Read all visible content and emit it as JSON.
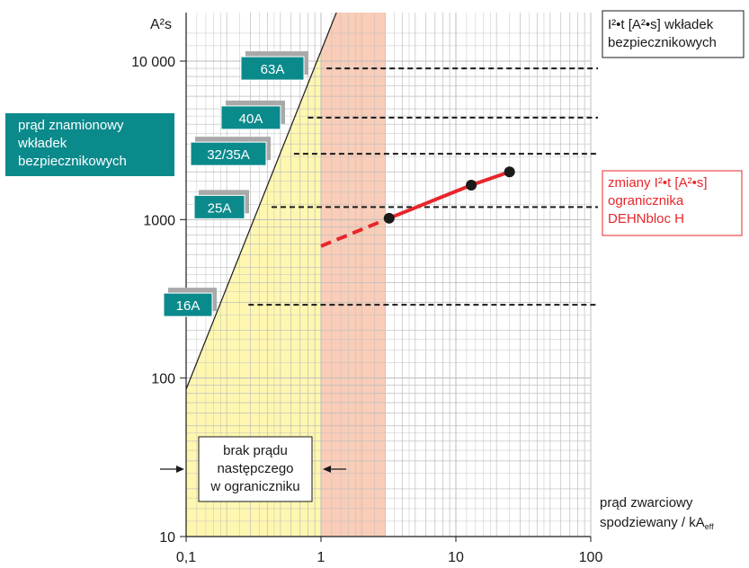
{
  "chart_data": {
    "type": "line",
    "title": "",
    "y_unit_label": "A²s",
    "x_axis_title": [
      "prąd zwarciowy",
      "spodziewany / kA"
    ],
    "x_axis_title_subscript": "eff",
    "x_scale": "log",
    "y_scale": "log",
    "xlim": [
      0.1,
      100
    ],
    "ylim": [
      10,
      15000
    ],
    "grid": true,
    "x_ticks": [
      {
        "value": 0.1,
        "label": "0,1"
      },
      {
        "value": 1,
        "label": "1"
      },
      {
        "value": 10,
        "label": "10"
      },
      {
        "value": 100,
        "label": "100"
      }
    ],
    "y_ticks": [
      {
        "value": 10,
        "label": "10"
      },
      {
        "value": 100,
        "label": "100"
      },
      {
        "value": 1000,
        "label": "1000"
      },
      {
        "value": 10000,
        "label": "10 000"
      }
    ],
    "fuse_legend_title": [
      "prąd znamionowy",
      "wkładek",
      "bezpiecznikowych"
    ],
    "fuse_values_title": [
      "I²•t [A²•s] wkładek",
      "bezpiecznikowych"
    ],
    "fuses": [
      {
        "label": "63A",
        "i2t": 9000,
        "x_start": 1.1
      },
      {
        "label": "40A",
        "i2t": 4400,
        "x_start": 0.8
      },
      {
        "label": "32/35A",
        "i2t": 2600,
        "x_start": 0.63
      },
      {
        "label": "25A",
        "i2t": 1200,
        "x_start": 0.43
      },
      {
        "label": "16A",
        "i2t": 290,
        "x_start": 0.29
      }
    ],
    "series": [
      {
        "name": "",
        "color": "#e8262b",
        "dashed_segment": [
          [
            1.0,
            680
          ],
          [
            3.2,
            1020
          ]
        ],
        "points": [
          [
            3.2,
            1020
          ],
          [
            13,
            1650
          ],
          [
            25,
            2000
          ]
        ]
      }
    ],
    "limiter_label": [
      "zmiany  I²•t [A²•s]",
      "ogranicznika",
      "DEHNbloc H"
    ],
    "no_follow_current_label": [
      "brak prądu",
      "następczego",
      "w ograniczniku"
    ],
    "colors": {
      "yellow_region": "#fff7b0",
      "pink_region": "#f9cdb8",
      "fuse_box": "#0b8a8c",
      "fuse_shadow": "#a9a9a9",
      "limiter_red": "#e8262b",
      "grid": "#bdbdbd"
    }
  }
}
